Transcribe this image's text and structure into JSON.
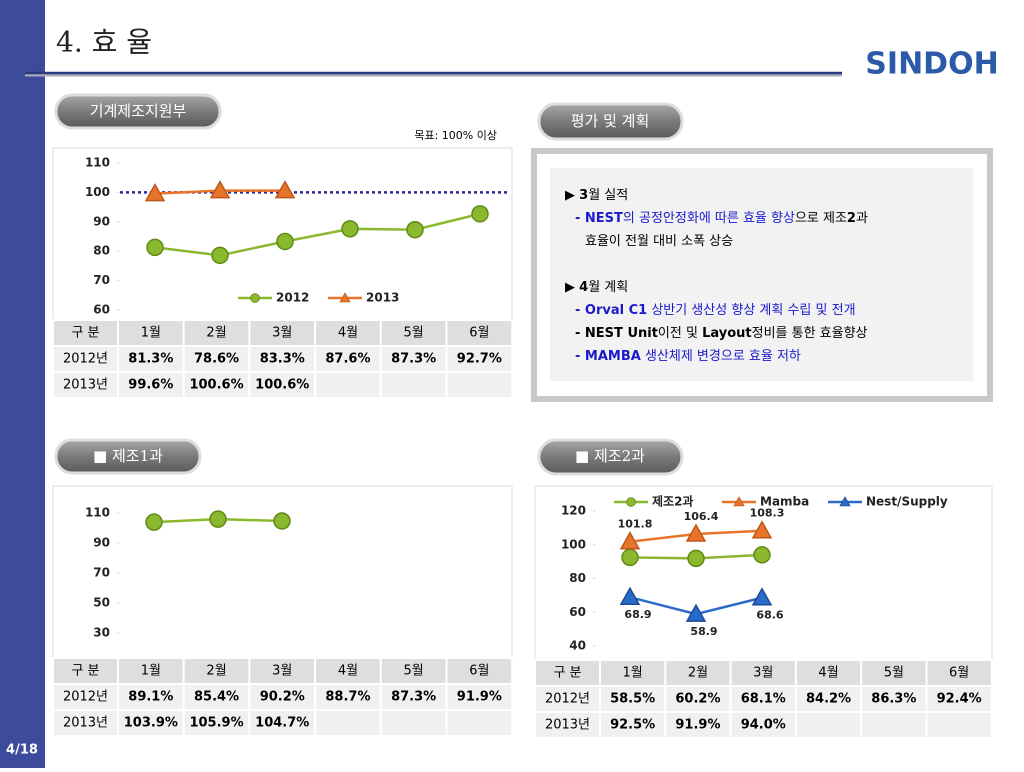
{
  "header": {
    "title": "4. 효 율",
    "logo": "SINDOH",
    "page": "4/18"
  },
  "panels": [
    {
      "label": "기계제조지원부",
      "note": "목표: 100% 이상",
      "chart": {
        "type": "line",
        "ylim": [
          60,
          110
        ],
        "yticks": [
          60,
          70,
          80,
          90,
          100,
          110
        ],
        "target": 100,
        "target_color": "#2a2aa0",
        "series": [
          {
            "name": "2012",
            "color": "#8ab82e",
            "marker": "circle",
            "values": [
              81.3,
              78.6,
              83.3,
              87.6,
              87.3,
              92.7
            ]
          },
          {
            "name": "2013",
            "color": "#e8742a",
            "marker": "triangle",
            "values": [
              99.6,
              100.6,
              100.6
            ]
          }
        ]
      },
      "table": {
        "header": [
          "구 분",
          "1월",
          "2월",
          "3월",
          "4월",
          "5월",
          "6월"
        ],
        "rows": [
          [
            "2012년",
            "81.3%",
            "78.6%",
            "83.3%",
            "87.6%",
            "87.3%",
            "92.7%"
          ],
          [
            "2013년",
            "99.6%",
            "100.6%",
            "100.6%"
          ]
        ],
        "highlight_cells": [
          [
            1,
            3
          ]
        ],
        "highlight_color": "#1a1adc"
      }
    },
    {
      "label": "평가 및 계획",
      "lines": [
        [
          {
            "text": "▶ "
          },
          {
            "text": "3",
            "bold": true
          },
          {
            "text": "월 실적"
          }
        ],
        [
          {
            "text": "- NEST",
            "bold": true,
            "color": "#1a1acc"
          },
          {
            "text": "의 공정안정화에 따른 효율 향상",
            "color": "#1a1acc"
          },
          {
            "text": "으로 제조"
          },
          {
            "text": "2",
            "bold": true
          },
          {
            "text": "과"
          }
        ],
        [
          {
            "text": "효율이 전월 대비 소폭 상승"
          }
        ],
        [],
        [
          {
            "text": "▶ "
          },
          {
            "text": "4",
            "bold": true
          },
          {
            "text": "월 계획"
          }
        ],
        [
          {
            "text": "- Orval C1",
            "bold": true,
            "color": "#1a1acc"
          },
          {
            "text": " 상반기 생산성 향상 계획 수립 및 전개",
            "color": "#1a1acc"
          }
        ],
        [
          {
            "text": "- NEST Unit",
            "bold": true
          },
          {
            "text": "이전 및 "
          },
          {
            "text": "Layout",
            "bold": true
          },
          {
            "text": "정비를 통한 효율향상"
          }
        ],
        [
          {
            "text": "- MAMBA",
            "bold": true,
            "color": "#1a1acc"
          },
          {
            "text": " 생산체제 변경으로 효율 저하",
            "color": "#1a1acc"
          }
        ]
      ]
    },
    {
      "label": "■ 제조1과",
      "chart": {
        "type": "line",
        "ylim": [
          30,
          110
        ],
        "yticks": [
          30,
          50,
          70,
          90,
          110
        ],
        "series": [
          {
            "color": "#8ab82e",
            "marker": "circle",
            "values": [
              103.9,
              105.9,
              104.7
            ]
          }
        ]
      },
      "table": {
        "header": [
          "구 분",
          "1월",
          "2월",
          "3월",
          "4월",
          "5월",
          "6월"
        ],
        "rows": [
          [
            "2012년",
            "89.1%",
            "85.4%",
            "90.2%",
            "88.7%",
            "87.3%",
            "91.9%"
          ],
          [
            "2013년",
            "103.9%",
            "105.9%",
            "104.7%"
          ]
        ]
      }
    },
    {
      "label": "■ 제조2과",
      "chart": {
        "type": "line",
        "ylim": [
          40,
          120
        ],
        "yticks": [
          40,
          60,
          80,
          100,
          120
        ],
        "series": [
          {
            "name": "제조2과",
            "color": "#8ab82e",
            "marker": "circle",
            "values": [
              92.5,
              91.9,
              94.0
            ]
          },
          {
            "name": "Mamba",
            "color": "#e8742a",
            "marker": "triangle",
            "values": [
              101.8,
              106.4,
              108.3
            ],
            "show_labels": true
          },
          {
            "name": "Nest/Supply",
            "color": "#2a6ac8",
            "marker": "triangle",
            "values": [
              68.9,
              58.9,
              68.6
            ],
            "show_labels": true
          }
        ]
      },
      "table": {
        "header": [
          "구 분",
          "1월",
          "2월",
          "3월",
          "4월",
          "5월",
          "6월"
        ],
        "rows": [
          [
            "2012년",
            "58.5%",
            "60.2%",
            "68.1%",
            "84.2%",
            "86.3%",
            "92.4%"
          ],
          [
            "2013년",
            "92.5%",
            "91.9%",
            "94.0%"
          ]
        ]
      }
    }
  ]
}
